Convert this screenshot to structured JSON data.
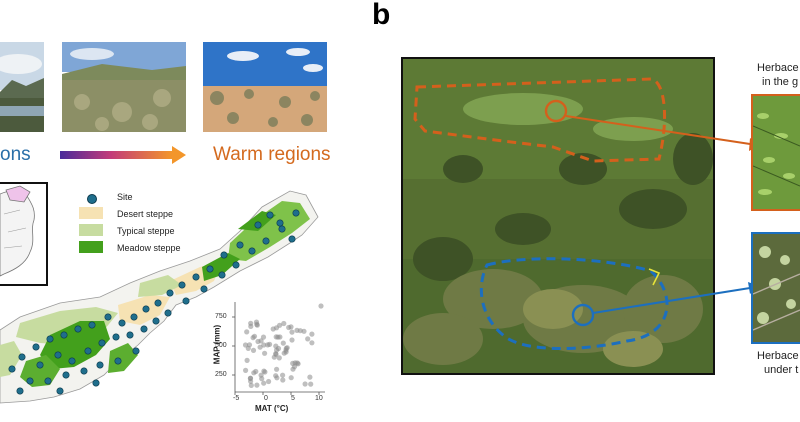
{
  "panel_b": {
    "label": "b"
  },
  "regions": {
    "cool_fragment": "ons",
    "warm": "Warm regions",
    "cool_color": "#2a6fa8",
    "warm_color": "#d46a1e"
  },
  "legend": {
    "site": "Site",
    "desert": "Desert steppe",
    "typical": "Typical steppe",
    "meadow": "Meadow steppe",
    "site_color": "#1f6e8c",
    "desert_color": "#f6e2b3",
    "typical_color": "#c7dca0",
    "meadow_color": "#43a01c"
  },
  "scatter": {
    "ylabel": "MAP (mm)",
    "xlabel": "MAT (°C)",
    "xticks": [
      "-5",
      "0",
      "5",
      "10"
    ],
    "yticks": [
      "750",
      "500",
      "250"
    ]
  },
  "photo_labels": {
    "top_line1": "Herbace",
    "top_line2": "in the g",
    "bottom_line1": "Herbace",
    "bottom_line2": "under t"
  },
  "annotation_colors": {
    "orange": "#d4601c",
    "blue": "#1c6fbf"
  }
}
